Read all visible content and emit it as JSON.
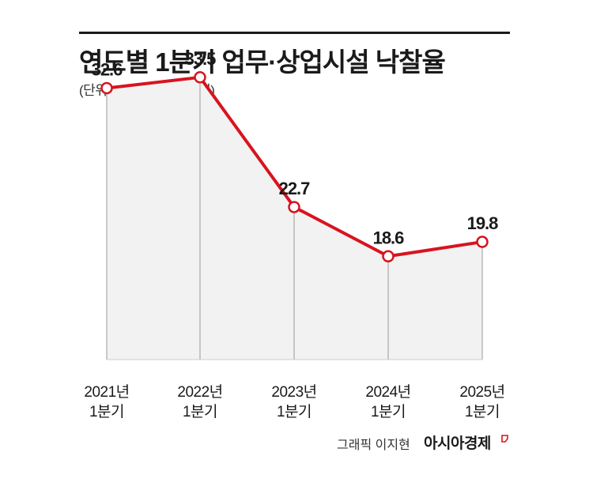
{
  "title": "연도별 1분기 업무·상업시설 낙찰율",
  "subtitle": "(단위: %, 출처: 지지옥션)",
  "credit": "그래픽 이지현",
  "brand": "아시아경제",
  "colors": {
    "line": "#d7141e",
    "area": "#f2f2f2",
    "text": "#1a1a1a"
  },
  "chart_data": {
    "type": "line",
    "categories": [
      [
        "2021년",
        "1분기"
      ],
      [
        "2022년",
        "1분기"
      ],
      [
        "2023년",
        "1분기"
      ],
      [
        "2024년",
        "1분기"
      ],
      [
        "2025년",
        "1분기"
      ]
    ],
    "values": [
      32.6,
      33.5,
      22.7,
      18.6,
      19.8
    ],
    "data_labels": [
      "32.6",
      "33.5",
      "22.7",
      "18.6",
      "19.8"
    ],
    "ylim": [
      10,
      35
    ],
    "grid": false,
    "area_fill": true,
    "markers": "hollow-circle"
  }
}
